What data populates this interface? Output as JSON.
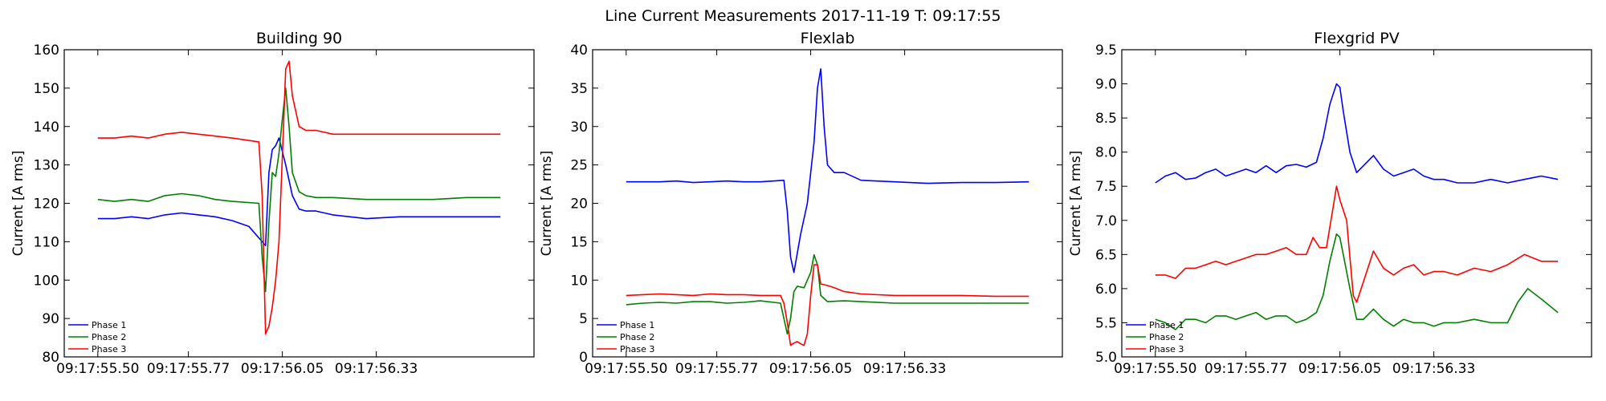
{
  "figure": {
    "title": "Line Current Measurements 2017-11-19 T: 09:17:55"
  },
  "chart_data": [
    {
      "type": "line",
      "title": "Building 90",
      "xlabel": "",
      "ylabel": "Current [A rms]",
      "ylim": [
        80,
        160
      ],
      "yticks": [
        "80",
        "90",
        "100",
        "110",
        "120",
        "130",
        "140",
        "150",
        "160"
      ],
      "xticks": [
        {
          "label": "09:17:55.50",
          "t": 0.0
        },
        {
          "label": "09:17:55.77",
          "t": 0.27
        },
        {
          "label": "09:17:56.05",
          "t": 0.55
        },
        {
          "label": "09:17:56.33",
          "t": 0.83
        }
      ],
      "xlim_t": [
        -0.1,
        1.3
      ],
      "legend": "bottom-left",
      "series": [
        {
          "name": "Phase 1",
          "color": "#0000ff",
          "t": [
            0.0,
            0.05,
            0.1,
            0.15,
            0.2,
            0.25,
            0.3,
            0.35,
            0.4,
            0.45,
            0.5,
            0.51,
            0.52,
            0.53,
            0.54,
            0.56,
            0.58,
            0.6,
            0.62,
            0.65,
            0.7,
            0.8,
            0.9,
            1.0,
            1.1,
            1.2
          ],
          "y": [
            116,
            116,
            116.5,
            116,
            117,
            117.5,
            117,
            116.5,
            115.5,
            114,
            109,
            128,
            134,
            135,
            137,
            130,
            122,
            118.5,
            118,
            118,
            117,
            116,
            116.5,
            116.5,
            116.5,
            116.5
          ]
        },
        {
          "name": "Phase 2",
          "color": "#008000",
          "t": [
            0.0,
            0.05,
            0.1,
            0.15,
            0.2,
            0.25,
            0.3,
            0.35,
            0.4,
            0.48,
            0.49,
            0.5,
            0.51,
            0.52,
            0.53,
            0.54,
            0.55,
            0.56,
            0.57,
            0.58,
            0.6,
            0.62,
            0.65,
            0.7,
            0.8,
            0.9,
            1.0,
            1.1,
            1.2
          ],
          "y": [
            121,
            120.5,
            121,
            120.5,
            122,
            122.5,
            122,
            121,
            120.5,
            120,
            106,
            97,
            115,
            128,
            127,
            133,
            142,
            150,
            140,
            128,
            123,
            122,
            121.5,
            121.5,
            121,
            121,
            121,
            121.5,
            121.5
          ]
        },
        {
          "name": "Phase 3",
          "color": "#ff0000",
          "t": [
            0.0,
            0.05,
            0.1,
            0.15,
            0.2,
            0.25,
            0.3,
            0.35,
            0.4,
            0.48,
            0.49,
            0.5,
            0.51,
            0.52,
            0.53,
            0.54,
            0.55,
            0.56,
            0.57,
            0.58,
            0.6,
            0.62,
            0.65,
            0.7,
            0.8,
            0.9,
            1.0,
            1.1,
            1.2
          ],
          "y": [
            137,
            137,
            137.5,
            137,
            138,
            138.5,
            138,
            137.5,
            137,
            136,
            122,
            86,
            88,
            93,
            100,
            110,
            132,
            155,
            157,
            148,
            140,
            139,
            139,
            138,
            138,
            138,
            138,
            138,
            138
          ]
        }
      ]
    },
    {
      "type": "line",
      "title": "Flexlab",
      "xlabel": "",
      "ylabel": "Current [A rms]",
      "ylim": [
        0,
        40
      ],
      "yticks": [
        "0",
        "5",
        "10",
        "15",
        "20",
        "25",
        "30",
        "35",
        "40"
      ],
      "xticks": [
        {
          "label": "09:17:55.50",
          "t": 0.0
        },
        {
          "label": "09:17:55.77",
          "t": 0.27
        },
        {
          "label": "09:17:56.05",
          "t": 0.55
        },
        {
          "label": "09:17:56.33",
          "t": 0.83
        }
      ],
      "xlim_t": [
        -0.1,
        1.3
      ],
      "legend": "bottom-left",
      "series": [
        {
          "name": "Phase 1",
          "color": "#0000ff",
          "t": [
            0.0,
            0.05,
            0.1,
            0.15,
            0.2,
            0.25,
            0.3,
            0.35,
            0.4,
            0.47,
            0.48,
            0.49,
            0.5,
            0.52,
            0.54,
            0.56,
            0.57,
            0.58,
            0.59,
            0.6,
            0.62,
            0.65,
            0.7,
            0.8,
            0.9,
            1.0,
            1.1,
            1.2
          ],
          "y": [
            22.8,
            22.8,
            22.8,
            22.9,
            22.7,
            22.8,
            22.9,
            22.8,
            22.8,
            23,
            19,
            13,
            11,
            16,
            20,
            28,
            35,
            37.5,
            30,
            25,
            24,
            24,
            23,
            22.8,
            22.6,
            22.7,
            22.7,
            22.8
          ]
        },
        {
          "name": "Phase 2",
          "color": "#008000",
          "t": [
            0.0,
            0.05,
            0.1,
            0.15,
            0.2,
            0.25,
            0.3,
            0.35,
            0.4,
            0.46,
            0.47,
            0.48,
            0.49,
            0.5,
            0.51,
            0.53,
            0.55,
            0.56,
            0.57,
            0.58,
            0.6,
            0.65,
            0.7,
            0.8,
            0.9,
            1.0,
            1.1,
            1.2
          ],
          "y": [
            6.8,
            7,
            7.1,
            7,
            7.2,
            7.2,
            7,
            7.1,
            7.3,
            7,
            5,
            3,
            5,
            8.5,
            9.2,
            9,
            11,
            13.3,
            12,
            8,
            7.2,
            7.3,
            7.2,
            7,
            7,
            7,
            7,
            7
          ]
        },
        {
          "name": "Phase 3",
          "color": "#ff0000",
          "t": [
            0.0,
            0.05,
            0.1,
            0.15,
            0.2,
            0.25,
            0.3,
            0.35,
            0.4,
            0.46,
            0.47,
            0.48,
            0.49,
            0.5,
            0.51,
            0.52,
            0.53,
            0.54,
            0.55,
            0.56,
            0.57,
            0.58,
            0.6,
            0.62,
            0.65,
            0.7,
            0.8,
            0.9,
            1.0,
            1.1,
            1.2
          ],
          "y": [
            8,
            8.1,
            8.2,
            8.1,
            8,
            8.2,
            8.1,
            8.1,
            8,
            8,
            7,
            4.5,
            1.5,
            1.8,
            2,
            1.7,
            1.5,
            3,
            8,
            12,
            12,
            9.5,
            9.3,
            9,
            8.5,
            8.2,
            8,
            8,
            8,
            7.9,
            7.9
          ]
        }
      ]
    },
    {
      "type": "line",
      "title": "Flexgrid PV",
      "xlabel": "",
      "ylabel": "Current [A rms]",
      "ylim": [
        5.0,
        9.5
      ],
      "yticks": [
        "5.0",
        "5.5",
        "6.0",
        "6.5",
        "7.0",
        "7.5",
        "8.0",
        "8.5",
        "9.0",
        "9.5"
      ],
      "xticks": [
        {
          "label": "09:17:55.50",
          "t": 0.0
        },
        {
          "label": "09:17:55.77",
          "t": 0.27
        },
        {
          "label": "09:17:56.05",
          "t": 0.55
        },
        {
          "label": "09:17:56.33",
          "t": 0.83
        }
      ],
      "xlim_t": [
        -0.1,
        1.3
      ],
      "legend": "bottom-left",
      "series": [
        {
          "name": "Phase 1",
          "color": "#0000ff",
          "t": [
            0.0,
            0.03,
            0.06,
            0.09,
            0.12,
            0.15,
            0.18,
            0.21,
            0.24,
            0.27,
            0.3,
            0.33,
            0.36,
            0.39,
            0.42,
            0.45,
            0.48,
            0.5,
            0.52,
            0.54,
            0.55,
            0.56,
            0.58,
            0.6,
            0.62,
            0.65,
            0.68,
            0.71,
            0.74,
            0.77,
            0.8,
            0.83,
            0.86,
            0.9,
            0.95,
            1.0,
            1.05,
            1.1,
            1.15,
            1.2
          ],
          "y": [
            7.55,
            7.65,
            7.7,
            7.6,
            7.62,
            7.7,
            7.75,
            7.65,
            7.7,
            7.75,
            7.7,
            7.8,
            7.7,
            7.8,
            7.82,
            7.78,
            7.85,
            8.2,
            8.7,
            9.0,
            8.95,
            8.6,
            8.0,
            7.7,
            7.8,
            7.95,
            7.75,
            7.65,
            7.7,
            7.75,
            7.65,
            7.6,
            7.6,
            7.55,
            7.55,
            7.6,
            7.55,
            7.6,
            7.65,
            7.6
          ]
        },
        {
          "name": "Phase 2",
          "color": "#008000",
          "t": [
            0.0,
            0.03,
            0.06,
            0.09,
            0.12,
            0.15,
            0.18,
            0.21,
            0.24,
            0.27,
            0.3,
            0.33,
            0.36,
            0.39,
            0.42,
            0.45,
            0.48,
            0.5,
            0.52,
            0.54,
            0.55,
            0.56,
            0.58,
            0.6,
            0.62,
            0.65,
            0.68,
            0.71,
            0.74,
            0.77,
            0.8,
            0.83,
            0.86,
            0.9,
            0.95,
            1.0,
            1.05,
            1.08,
            1.11,
            1.15,
            1.2
          ],
          "y": [
            5.55,
            5.5,
            5.4,
            5.55,
            5.55,
            5.5,
            5.6,
            5.6,
            5.55,
            5.6,
            5.65,
            5.55,
            5.6,
            5.6,
            5.5,
            5.55,
            5.65,
            5.9,
            6.4,
            6.8,
            6.75,
            6.5,
            6.0,
            5.55,
            5.55,
            5.7,
            5.55,
            5.45,
            5.55,
            5.5,
            5.5,
            5.45,
            5.5,
            5.5,
            5.55,
            5.5,
            5.5,
            5.8,
            6.0,
            5.85,
            5.65
          ]
        },
        {
          "name": "Phase 3",
          "color": "#ff0000",
          "t": [
            0.0,
            0.03,
            0.06,
            0.09,
            0.12,
            0.15,
            0.18,
            0.21,
            0.24,
            0.27,
            0.3,
            0.33,
            0.36,
            0.39,
            0.42,
            0.45,
            0.47,
            0.49,
            0.51,
            0.53,
            0.54,
            0.55,
            0.57,
            0.59,
            0.6,
            0.62,
            0.65,
            0.68,
            0.71,
            0.74,
            0.77,
            0.8,
            0.83,
            0.86,
            0.9,
            0.95,
            1.0,
            1.05,
            1.1,
            1.15,
            1.2
          ],
          "y": [
            6.2,
            6.2,
            6.15,
            6.3,
            6.3,
            6.35,
            6.4,
            6.35,
            6.4,
            6.45,
            6.5,
            6.5,
            6.55,
            6.6,
            6.5,
            6.5,
            6.75,
            6.6,
            6.6,
            7.2,
            7.5,
            7.3,
            7.0,
            5.9,
            5.8,
            6.1,
            6.55,
            6.3,
            6.2,
            6.3,
            6.35,
            6.2,
            6.25,
            6.25,
            6.2,
            6.3,
            6.25,
            6.35,
            6.5,
            6.4,
            6.4
          ]
        }
      ]
    }
  ]
}
